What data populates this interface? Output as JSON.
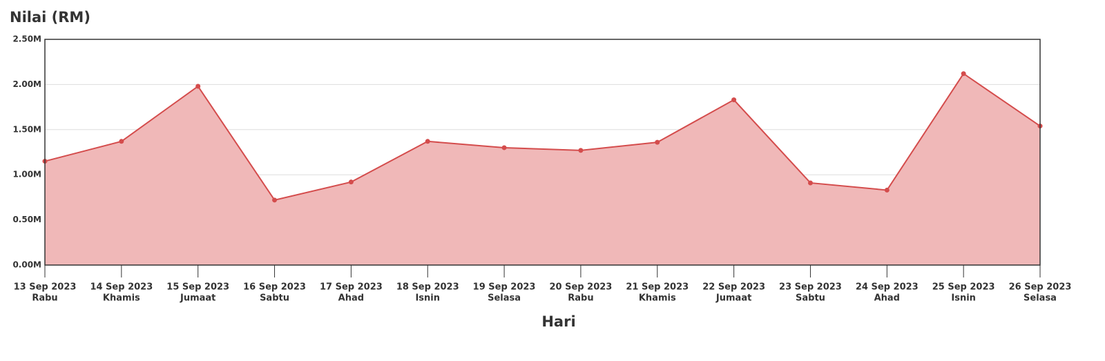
{
  "chart_data": {
    "type": "area",
    "y_label": "Nilai (RM)",
    "x_label": "Hari",
    "categories": [
      "13 Sep 2023",
      "14 Sep 2023",
      "15 Sep 2023",
      "16 Sep 2023",
      "17 Sep 2023",
      "18 Sep 2023",
      "19 Sep 2023",
      "20 Sep 2023",
      "21 Sep 2023",
      "22 Sep 2023",
      "23 Sep 2023",
      "24 Sep 2023",
      "25 Sep 2023",
      "26 Sep 2023"
    ],
    "category_sublabels": [
      "Rabu",
      "Khamis",
      "Jumaat",
      "Sabtu",
      "Ahad",
      "Isnin",
      "Selasa",
      "Rabu",
      "Khamis",
      "Jumaat",
      "Sabtu",
      "Ahad",
      "Isnin",
      "Selasa"
    ],
    "values": [
      1150000,
      1370000,
      1980000,
      720000,
      920000,
      1370000,
      1300000,
      1270000,
      1360000,
      1830000,
      910000,
      830000,
      2120000,
      1540000
    ],
    "color": "#d44c4c",
    "fill_color": "#f0b8b8",
    "ylim": [
      0,
      2500000
    ],
    "yticks": [
      {
        "value": 0,
        "label": "0.00M"
      },
      {
        "value": 500000,
        "label": "0.50M"
      },
      {
        "value": 1000000,
        "label": "1.00M"
      },
      {
        "value": 1500000,
        "label": "1.50M"
      },
      {
        "value": 2000000,
        "label": "2.00M"
      },
      {
        "value": 2500000,
        "label": "2.50M"
      }
    ],
    "grid": true
  }
}
